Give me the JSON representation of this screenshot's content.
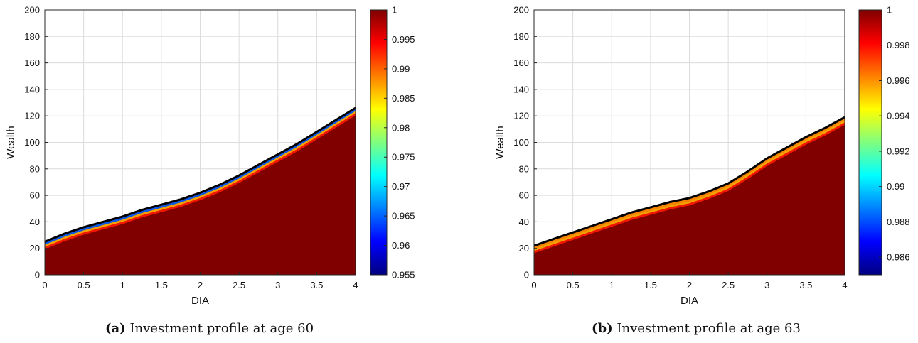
{
  "chart_data": [
    {
      "type": "heatmap",
      "panel_label": "(a)",
      "caption": "Investment profile at age 60",
      "xlabel": "DIA",
      "ylabel": "Wealth",
      "xlim": [
        0,
        4
      ],
      "ylim": [
        0,
        200
      ],
      "xticks": [
        "0",
        "0.5",
        "1",
        "1.5",
        "2",
        "2.5",
        "3",
        "3.5",
        "4"
      ],
      "yticks": [
        "0",
        "20",
        "40",
        "60",
        "80",
        "100",
        "120",
        "140",
        "160",
        "180",
        "200"
      ],
      "grid": true,
      "colorbar": {
        "min": 0.955,
        "max": 1,
        "ticks": [
          "0.955",
          "0.96",
          "0.965",
          "0.97",
          "0.975",
          "0.98",
          "0.985",
          "0.99",
          "0.995",
          "1"
        ],
        "colormap": "jet"
      },
      "boundary": {
        "x": [
          0,
          0.25,
          0.5,
          0.75,
          1,
          1.25,
          1.5,
          1.75,
          2,
          2.25,
          2.5,
          2.75,
          3,
          3.25,
          3.5,
          3.75,
          4
        ],
        "y": [
          25,
          31,
          36,
          40,
          44,
          49,
          53,
          57,
          62,
          68,
          75,
          83,
          91,
          99,
          108,
          117,
          126
        ]
      },
      "fill_value": 1,
      "edge_min_value": 0.965
    },
    {
      "type": "heatmap",
      "panel_label": "(b)",
      "caption": "Investment profile at age 63",
      "xlabel": "DIA",
      "ylabel": "Wealth",
      "xlim": [
        0,
        4
      ],
      "ylim": [
        0,
        200
      ],
      "xticks": [
        "0",
        "0.5",
        "1",
        "1.5",
        "2",
        "2.5",
        "3",
        "3.5",
        "4"
      ],
      "yticks": [
        "0",
        "20",
        "40",
        "60",
        "80",
        "100",
        "120",
        "140",
        "160",
        "180",
        "200"
      ],
      "grid": true,
      "colorbar": {
        "min": 0.985,
        "max": 1,
        "ticks": [
          "0.986",
          "0.988",
          "0.99",
          "0.992",
          "0.994",
          "0.996",
          "0.998",
          "1"
        ],
        "colormap": "jet"
      },
      "boundary": {
        "x": [
          0,
          0.25,
          0.5,
          0.75,
          1,
          1.25,
          1.5,
          1.75,
          2,
          2.25,
          2.5,
          2.75,
          3,
          3.25,
          3.5,
          3.75,
          4
        ],
        "y": [
          22,
          27,
          32,
          37,
          42,
          47,
          51,
          55,
          58,
          63,
          69,
          78,
          88,
          96,
          104,
          111,
          119
        ]
      },
      "fill_value": 1,
      "edge_min_value": 0.996
    }
  ]
}
